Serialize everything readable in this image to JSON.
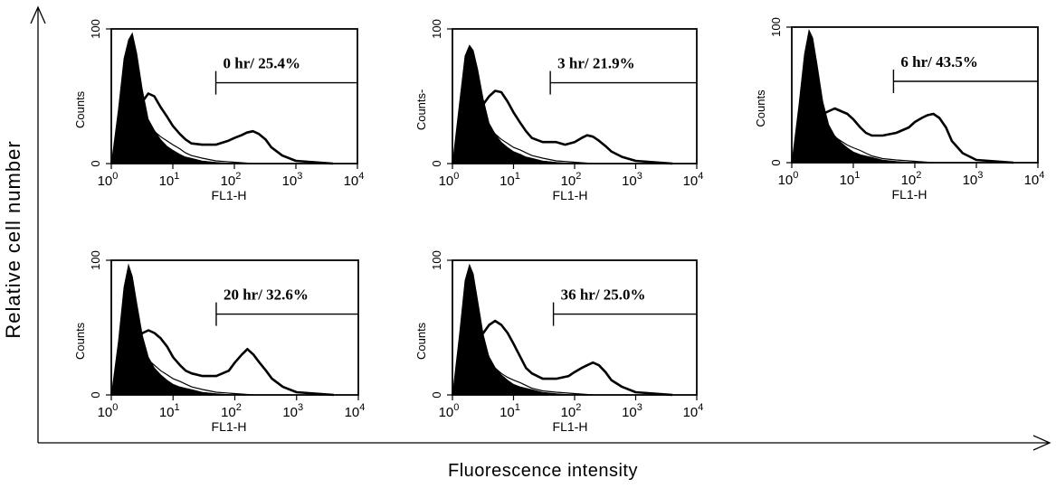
{
  "figure": {
    "y_label": "Relative cell number",
    "x_label": "Fluorescence intensity"
  },
  "chart_data": [
    {
      "type": "area",
      "annotation": "0 hr/ 25.4%",
      "xlabel": "FL1-H",
      "ylabel": "Counts",
      "x_scale": "log",
      "xlim": [
        1,
        10000
      ],
      "ylim": [
        0,
        100
      ],
      "x_ticks": [
        "10^0",
        "10^1",
        "10^2",
        "10^3",
        "10^4"
      ],
      "y_ticks": [
        "0",
        "100"
      ],
      "gate": [
        50,
        10000
      ],
      "gate_percent": 25.4,
      "series": [
        {
          "style": "filled",
          "x": [
            1,
            1.3,
            1.6,
            1.9,
            2.2,
            2.6,
            3.2,
            4,
            5,
            6.3,
            8,
            10,
            13,
            16,
            20,
            30,
            50,
            100
          ],
          "y": [
            0,
            40,
            78,
            92,
            97,
            82,
            55,
            33,
            25,
            18,
            13,
            10,
            7,
            5,
            4,
            2,
            1,
            0
          ]
        },
        {
          "style": "thin",
          "x": [
            1,
            1.3,
            1.6,
            2,
            2.5,
            3.2,
            4,
            5,
            6.3,
            8,
            10,
            13,
            16,
            20,
            30,
            50,
            100,
            200
          ],
          "y": [
            0,
            20,
            45,
            58,
            52,
            40,
            30,
            24,
            20,
            17,
            14,
            11,
            8,
            6,
            4,
            2,
            1,
            0
          ]
        },
        {
          "style": "thick",
          "x": [
            1,
            1.3,
            1.6,
            2,
            2.5,
            3.2,
            4,
            5,
            6.3,
            8,
            10,
            13,
            16,
            20,
            30,
            50,
            80,
            100,
            130,
            160,
            200,
            250,
            320,
            400,
            600,
            1000,
            2000,
            4000
          ],
          "y": [
            0,
            15,
            28,
            35,
            40,
            46,
            52,
            50,
            42,
            35,
            28,
            22,
            18,
            15,
            14,
            14,
            17,
            19,
            21,
            23,
            24,
            22,
            18,
            12,
            6,
            2,
            1,
            0
          ]
        }
      ]
    },
    {
      "type": "area",
      "annotation": "3 hr/ 21.9%",
      "xlabel": "FL1-H",
      "ylabel": "Counts-",
      "x_scale": "log",
      "xlim": [
        1,
        10000
      ],
      "ylim": [
        0,
        100
      ],
      "x_ticks": [
        "10^0",
        "10^1",
        "10^2",
        "10^3",
        "10^4"
      ],
      "y_ticks": [
        "0",
        "100"
      ],
      "gate": [
        40,
        10000
      ],
      "gate_percent": 21.9,
      "series": [
        {
          "style": "filled",
          "x": [
            1,
            1.3,
            1.6,
            1.9,
            2.2,
            2.6,
            3.2,
            4,
            5,
            6.3,
            8,
            10,
            13,
            16,
            20,
            30,
            50,
            100
          ],
          "y": [
            0,
            45,
            80,
            88,
            84,
            70,
            48,
            30,
            22,
            16,
            12,
            9,
            7,
            5,
            4,
            2,
            1,
            0
          ]
        },
        {
          "style": "thin",
          "x": [
            1,
            1.3,
            1.6,
            2,
            2.5,
            3.2,
            4,
            5,
            6.3,
            8,
            10,
            13,
            16,
            20,
            30,
            50,
            100,
            200
          ],
          "y": [
            0,
            18,
            38,
            48,
            45,
            36,
            28,
            22,
            18,
            15,
            12,
            10,
            8,
            6,
            4,
            2,
            1,
            0
          ]
        },
        {
          "style": "thick",
          "x": [
            1,
            1.3,
            1.6,
            2,
            2.5,
            3.2,
            4,
            5,
            6.3,
            8,
            10,
            13,
            16,
            20,
            30,
            50,
            70,
            100,
            130,
            160,
            200,
            250,
            320,
            400,
            600,
            1000,
            2000,
            4000
          ],
          "y": [
            0,
            12,
            25,
            32,
            38,
            44,
            50,
            54,
            53,
            46,
            38,
            30,
            24,
            19,
            16,
            16,
            14,
            16,
            19,
            21,
            20,
            17,
            13,
            9,
            5,
            2,
            1,
            0
          ]
        }
      ]
    },
    {
      "type": "area",
      "annotation": "6 hr/ 43.5%",
      "xlabel": "FL1-H",
      "ylabel": "Counts",
      "x_scale": "log",
      "xlim": [
        1,
        10000
      ],
      "ylim": [
        0,
        100
      ],
      "x_ticks": [
        "10^0",
        "10^1",
        "10^2",
        "10^3",
        "10^4"
      ],
      "y_ticks": [
        "0",
        "100"
      ],
      "gate": [
        45,
        10000
      ],
      "gate_percent": 43.5,
      "series": [
        {
          "style": "filled",
          "x": [
            1,
            1.3,
            1.6,
            1.9,
            2.2,
            2.6,
            3.2,
            4,
            5,
            6.3,
            8,
            10,
            13,
            16,
            20,
            30,
            50,
            100
          ],
          "y": [
            0,
            42,
            80,
            98,
            92,
            72,
            45,
            28,
            20,
            15,
            11,
            8,
            6,
            5,
            4,
            2,
            1,
            0
          ]
        },
        {
          "style": "thin",
          "x": [
            1,
            1.3,
            1.6,
            2,
            2.5,
            3.2,
            4,
            5,
            6.3,
            8,
            10,
            13,
            16,
            20,
            30,
            50,
            100,
            200
          ],
          "y": [
            0,
            15,
            30,
            38,
            36,
            30,
            24,
            19,
            16,
            13,
            11,
            9,
            7,
            5,
            3,
            2,
            1,
            0
          ]
        },
        {
          "style": "thick",
          "x": [
            1,
            1.3,
            1.6,
            2,
            2.5,
            3.2,
            4,
            5,
            6.3,
            8,
            10,
            13,
            16,
            20,
            30,
            50,
            80,
            100,
            130,
            160,
            200,
            250,
            320,
            400,
            600,
            1000,
            2000,
            4000
          ],
          "y": [
            0,
            10,
            20,
            27,
            32,
            36,
            38,
            40,
            38,
            36,
            32,
            26,
            22,
            20,
            20,
            22,
            26,
            30,
            33,
            35,
            36,
            33,
            26,
            16,
            7,
            2,
            1,
            0
          ]
        }
      ]
    },
    {
      "type": "area",
      "annotation": "20 hr/ 32.6%",
      "xlabel": "FL1-H",
      "ylabel": "Counts",
      "x_scale": "log",
      "xlim": [
        1,
        10000
      ],
      "ylim": [
        0,
        100
      ],
      "x_ticks": [
        "10^0",
        "10^1",
        "10^2",
        "10^3",
        "10^4"
      ],
      "y_ticks": [
        "0",
        "100"
      ],
      "gate": [
        50,
        10000
      ],
      "gate_percent": 32.6,
      "series": [
        {
          "style": "filled",
          "x": [
            1,
            1.3,
            1.6,
            1.9,
            2.2,
            2.6,
            3.2,
            4,
            5,
            6.3,
            8,
            10,
            13,
            16,
            20,
            30,
            50,
            100
          ],
          "y": [
            0,
            40,
            80,
            97,
            88,
            68,
            44,
            28,
            20,
            15,
            11,
            8,
            6,
            5,
            4,
            2,
            1,
            0
          ]
        },
        {
          "style": "thin",
          "x": [
            1,
            1.3,
            1.6,
            2,
            2.5,
            3.2,
            4,
            5,
            6.3,
            8,
            10,
            13,
            16,
            20,
            30,
            50,
            100,
            200
          ],
          "y": [
            0,
            14,
            28,
            36,
            34,
            30,
            26,
            22,
            18,
            15,
            12,
            10,
            8,
            6,
            4,
            2,
            1,
            0
          ]
        },
        {
          "style": "thick",
          "x": [
            1,
            1.3,
            1.6,
            2,
            2.5,
            3.2,
            4,
            5,
            6.3,
            8,
            10,
            13,
            16,
            20,
            30,
            50,
            80,
            100,
            130,
            160,
            200,
            250,
            320,
            400,
            600,
            1000,
            2000,
            4000
          ],
          "y": [
            0,
            12,
            25,
            33,
            40,
            46,
            48,
            46,
            42,
            36,
            28,
            22,
            18,
            16,
            14,
            14,
            18,
            24,
            30,
            34,
            30,
            24,
            18,
            12,
            6,
            2,
            1,
            0
          ]
        }
      ]
    },
    {
      "type": "area",
      "annotation": "36 hr/ 25.0%",
      "xlabel": "FL1-H",
      "ylabel": "Counts",
      "x_scale": "log",
      "xlim": [
        1,
        10000
      ],
      "ylim": [
        0,
        100
      ],
      "x_ticks": [
        "10^0",
        "10^1",
        "10^2",
        "10^3",
        "10^4"
      ],
      "y_ticks": [
        "0",
        "100"
      ],
      "gate": [
        45,
        10000
      ],
      "gate_percent": 25.0,
      "series": [
        {
          "style": "filled",
          "x": [
            1,
            1.3,
            1.6,
            1.9,
            2.2,
            2.6,
            3.2,
            4,
            5,
            6.3,
            8,
            10,
            13,
            16,
            20,
            30,
            50,
            100
          ],
          "y": [
            0,
            45,
            85,
            97,
            90,
            70,
            45,
            28,
            20,
            15,
            11,
            8,
            6,
            5,
            4,
            2,
            1,
            0
          ]
        },
        {
          "style": "thin",
          "x": [
            1,
            1.3,
            1.6,
            2,
            2.5,
            3.2,
            4,
            5,
            6.3,
            8,
            10,
            13,
            16,
            20,
            30,
            50,
            100,
            200
          ],
          "y": [
            0,
            20,
            42,
            52,
            48,
            38,
            28,
            20,
            16,
            13,
            11,
            9,
            7,
            5,
            3,
            2,
            1,
            0
          ]
        },
        {
          "style": "thick",
          "x": [
            1,
            1.3,
            1.6,
            2,
            2.5,
            3.2,
            4,
            5,
            6.3,
            8,
            10,
            13,
            16,
            20,
            30,
            50,
            80,
            100,
            130,
            160,
            200,
            250,
            320,
            400,
            600,
            1000,
            2000,
            4000
          ],
          "y": [
            0,
            10,
            22,
            30,
            38,
            46,
            52,
            55,
            52,
            46,
            38,
            28,
            20,
            16,
            12,
            12,
            14,
            17,
            20,
            22,
            24,
            22,
            17,
            11,
            6,
            2,
            1,
            0
          ]
        }
      ]
    }
  ]
}
